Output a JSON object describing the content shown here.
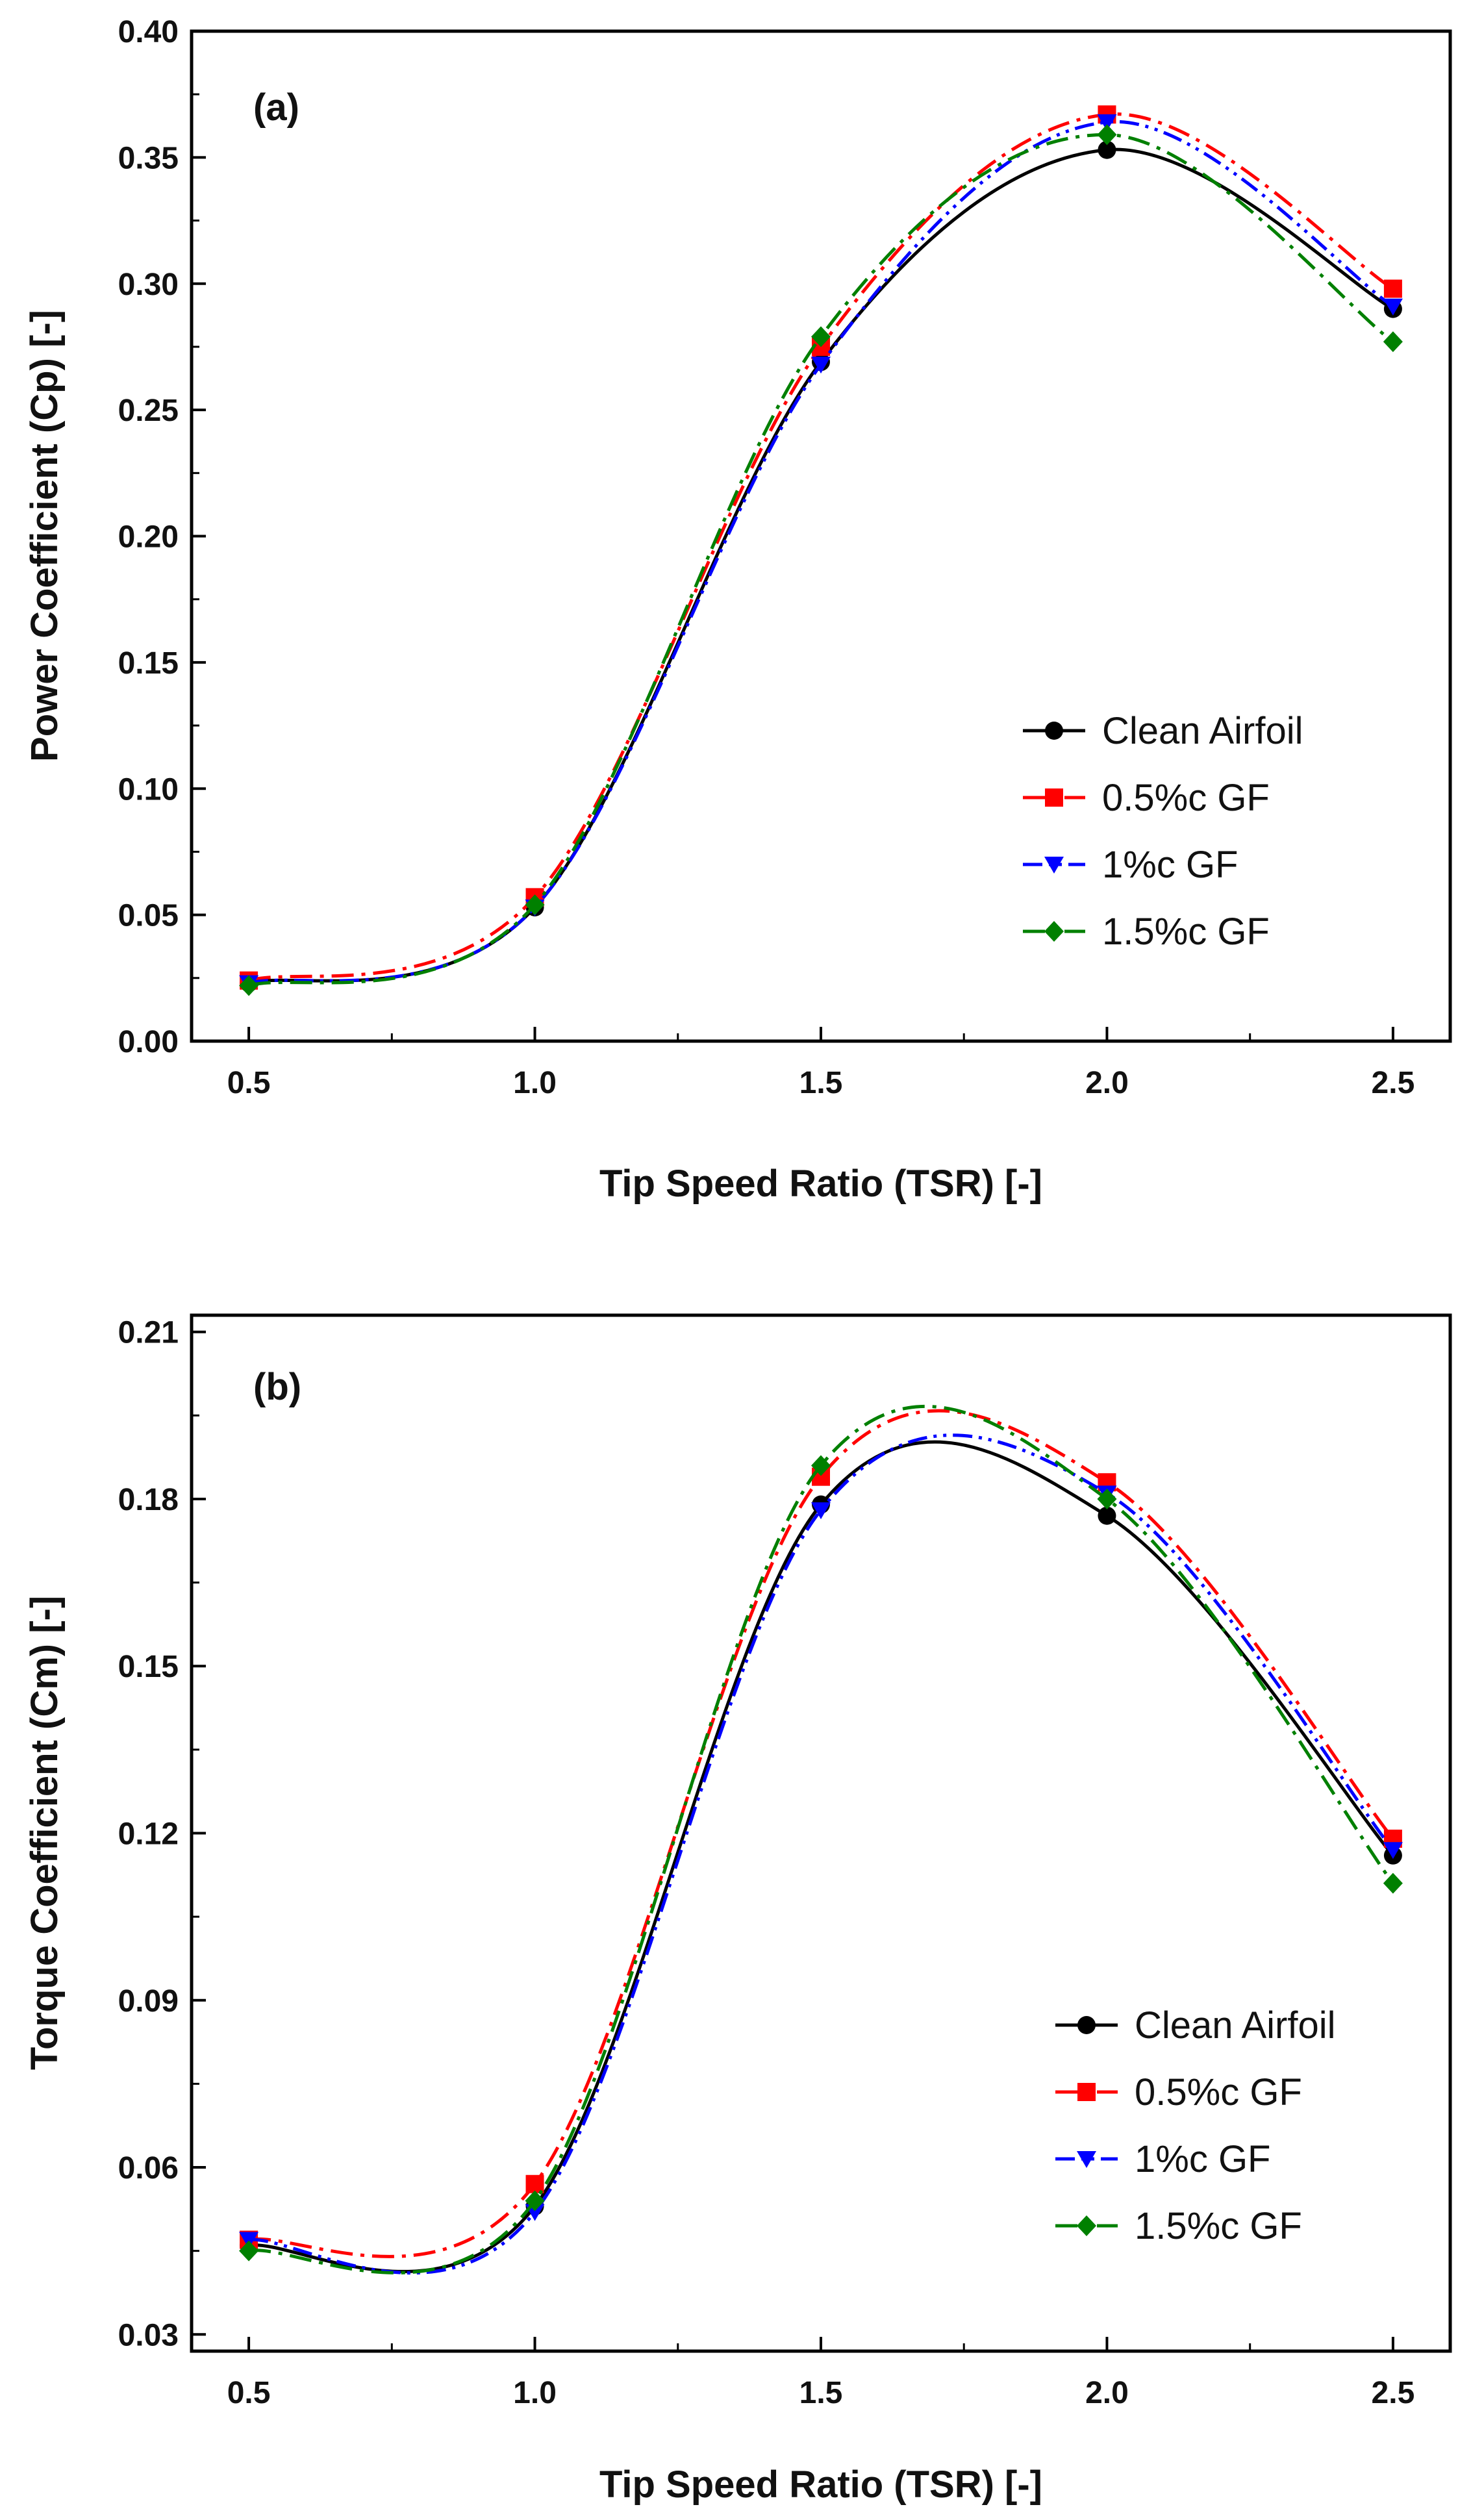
{
  "chart_data": [
    {
      "type": "line",
      "panel_label": "(a)",
      "xlabel": "Tip Speed Ratio (TSR) [-]",
      "ylabel": "Power Coefficient (Cp) [-]",
      "xlim": [
        0.4,
        2.6
      ],
      "ylim": [
        0.0,
        0.4
      ],
      "xticks": [
        "0.5",
        "1.0",
        "1.5",
        "2.0",
        "2.5"
      ],
      "yticks": [
        "0.00",
        "0.05",
        "0.10",
        "0.15",
        "0.20",
        "0.25",
        "0.30",
        "0.35",
        "0.40"
      ],
      "legend_position": "bottom-right",
      "x": [
        0.5,
        1.0,
        1.5,
        2.0,
        2.5
      ],
      "series": [
        {
          "name": "Clean Airfoil",
          "color": "#000000",
          "marker": "circle",
          "dash": "solid",
          "values": [
            0.023,
            0.053,
            0.269,
            0.353,
            0.29
          ]
        },
        {
          "name": "0.5%c GF",
          "color": "#ff0000",
          "marker": "square",
          "dash": "dash-dot",
          "values": [
            0.024,
            0.057,
            0.275,
            0.367,
            0.298
          ]
        },
        {
          "name": "1%c GF",
          "color": "#0000ff",
          "marker": "triangle-down",
          "dash": "dash-dot-dot",
          "values": [
            0.023,
            0.053,
            0.268,
            0.364,
            0.291
          ]
        },
        {
          "name": "1.5%c GF",
          "color": "#008000",
          "marker": "diamond",
          "dash": "dash-dot",
          "values": [
            0.022,
            0.054,
            0.279,
            0.359,
            0.277
          ]
        }
      ]
    },
    {
      "type": "line",
      "panel_label": "(b)",
      "xlabel": "Tip Speed Ratio (TSR) [-]",
      "ylabel": "Torque Coefficient (Cm) [-]",
      "xlim": [
        0.4,
        2.6
      ],
      "ylim": [
        0.027,
        0.213
      ],
      "xticks": [
        "0.5",
        "1.0",
        "1.5",
        "2.0",
        "2.5"
      ],
      "yticks": [
        "0.03",
        "0.06",
        "0.09",
        "0.12",
        "0.15",
        "0.18",
        "0.21"
      ],
      "legend_position": "bottom-right",
      "x": [
        0.5,
        1.0,
        1.5,
        2.0,
        2.5
      ],
      "series": [
        {
          "name": "Clean Airfoil",
          "color": "#000000",
          "marker": "circle",
          "dash": "solid",
          "values": [
            0.046,
            0.053,
            0.179,
            0.177,
            0.116
          ]
        },
        {
          "name": "0.5%c GF",
          "color": "#ff0000",
          "marker": "square",
          "dash": "dash-dot",
          "values": [
            0.047,
            0.057,
            0.184,
            0.183,
            0.119
          ]
        },
        {
          "name": "1%c GF",
          "color": "#0000ff",
          "marker": "triangle-down",
          "dash": "dash-dot-dot",
          "values": [
            0.047,
            0.052,
            0.178,
            0.181,
            0.117
          ]
        },
        {
          "name": "1.5%c GF",
          "color": "#008000",
          "marker": "diamond",
          "dash": "dash-dot",
          "values": [
            0.045,
            0.054,
            0.186,
            0.18,
            0.111
          ]
        }
      ]
    }
  ]
}
